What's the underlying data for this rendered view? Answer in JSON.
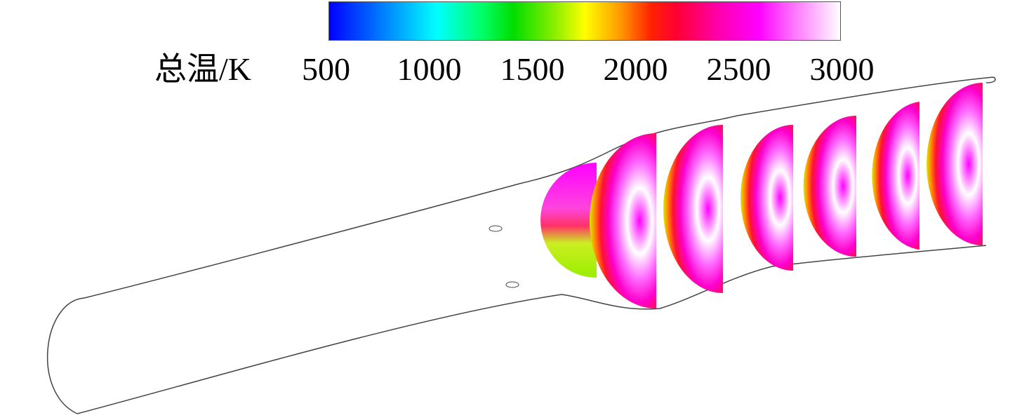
{
  "legend": {
    "title": "总温/K",
    "ticks": [
      500,
      1000,
      1500,
      2000,
      2500,
      3000
    ]
  }
}
